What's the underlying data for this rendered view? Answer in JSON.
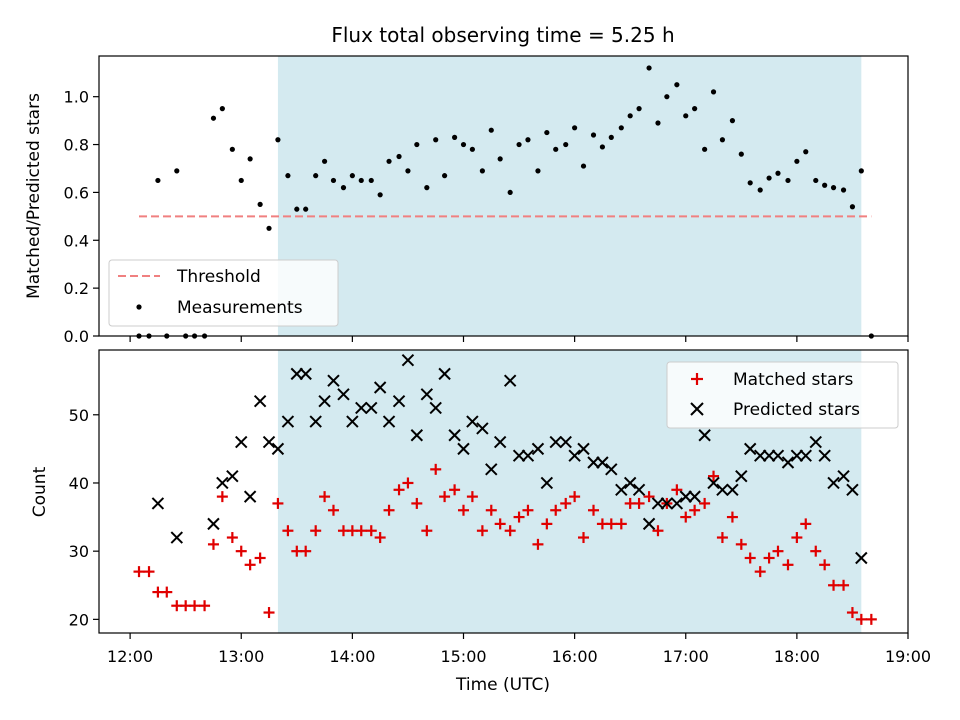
{
  "colors": {
    "observing_window": "#d4eaf0",
    "threshold": "#f08080",
    "measurements": "#000000",
    "matched": "#e00000",
    "predicted": "#000000"
  },
  "chart_data": [
    {
      "type": "scatter",
      "title": "Flux total observing time = 5.25 h",
      "xlabel": "",
      "ylabel": "Matched/Predicted stars",
      "x_unit": "hours UTC",
      "xlim": [
        11.72,
        19.0
      ],
      "ylim": [
        0.0,
        1.17
      ],
      "yticks": [
        0.0,
        0.2,
        0.4,
        0.6,
        0.8,
        1.0
      ],
      "ytick_labels": [
        "0.0",
        "0.2",
        "0.4",
        "0.6",
        "0.8",
        "1.0"
      ],
      "shaded_span": [
        13.33,
        18.58
      ],
      "legend_position": "lower-left",
      "threshold": {
        "name": "Threshold",
        "value": 0.5,
        "x_range": [
          12.08,
          18.67
        ]
      },
      "series": [
        {
          "name": "Measurements",
          "marker": "dot",
          "points": [
            [
              12.08,
              0.0
            ],
            [
              12.17,
              0.0
            ],
            [
              12.25,
              0.65
            ],
            [
              12.33,
              0.0
            ],
            [
              12.42,
              0.69
            ],
            [
              12.5,
              0.0
            ],
            [
              12.58,
              0.0
            ],
            [
              12.67,
              0.0
            ],
            [
              12.75,
              0.91
            ],
            [
              12.83,
              0.95
            ],
            [
              12.92,
              0.78
            ],
            [
              13.0,
              0.65
            ],
            [
              13.08,
              0.74
            ],
            [
              13.17,
              0.55
            ],
            [
              13.25,
              0.45
            ],
            [
              13.33,
              0.82
            ],
            [
              13.42,
              0.67
            ],
            [
              13.5,
              0.53
            ],
            [
              13.58,
              0.53
            ],
            [
              13.67,
              0.67
            ],
            [
              13.75,
              0.73
            ],
            [
              13.83,
              0.65
            ],
            [
              13.92,
              0.62
            ],
            [
              14.0,
              0.67
            ],
            [
              14.08,
              0.65
            ],
            [
              14.17,
              0.65
            ],
            [
              14.25,
              0.59
            ],
            [
              14.33,
              0.73
            ],
            [
              14.42,
              0.75
            ],
            [
              14.5,
              0.69
            ],
            [
              14.58,
              0.8
            ],
            [
              14.67,
              0.62
            ],
            [
              14.75,
              0.82
            ],
            [
              14.83,
              0.67
            ],
            [
              14.92,
              0.83
            ],
            [
              15.0,
              0.8
            ],
            [
              15.08,
              0.78
            ],
            [
              15.17,
              0.69
            ],
            [
              15.25,
              0.86
            ],
            [
              15.33,
              0.74
            ],
            [
              15.42,
              0.6
            ],
            [
              15.5,
              0.8
            ],
            [
              15.58,
              0.82
            ],
            [
              15.67,
              0.69
            ],
            [
              15.75,
              0.85
            ],
            [
              15.83,
              0.78
            ],
            [
              15.92,
              0.8
            ],
            [
              16.0,
              0.87
            ],
            [
              16.08,
              0.71
            ],
            [
              16.17,
              0.84
            ],
            [
              16.25,
              0.79
            ],
            [
              16.33,
              0.83
            ],
            [
              16.42,
              0.87
            ],
            [
              16.5,
              0.92
            ],
            [
              16.58,
              0.95
            ],
            [
              16.67,
              1.12
            ],
            [
              16.75,
              0.89
            ],
            [
              16.83,
              1.0
            ],
            [
              16.92,
              1.05
            ],
            [
              17.0,
              0.92
            ],
            [
              17.08,
              0.95
            ],
            [
              17.17,
              0.78
            ],
            [
              17.25,
              1.02
            ],
            [
              17.33,
              0.82
            ],
            [
              17.42,
              0.9
            ],
            [
              17.5,
              0.76
            ],
            [
              17.58,
              0.64
            ],
            [
              17.67,
              0.61
            ],
            [
              17.75,
              0.66
            ],
            [
              17.83,
              0.68
            ],
            [
              17.92,
              0.65
            ],
            [
              18.0,
              0.73
            ],
            [
              18.08,
              0.77
            ],
            [
              18.17,
              0.65
            ],
            [
              18.25,
              0.63
            ],
            [
              18.33,
              0.62
            ],
            [
              18.42,
              0.61
            ],
            [
              18.5,
              0.54
            ],
            [
              18.58,
              0.69
            ],
            [
              18.67,
              0.0
            ]
          ]
        }
      ]
    },
    {
      "type": "scatter",
      "title": "",
      "xlabel": "Time (UTC)",
      "ylabel": "Count",
      "x_unit": "hours UTC",
      "xlim": [
        11.72,
        19.0
      ],
      "ylim": [
        18.0,
        59.5
      ],
      "yticks": [
        20,
        30,
        40,
        50
      ],
      "ytick_labels": [
        "20",
        "30",
        "40",
        "50"
      ],
      "xticks": [
        12,
        13,
        14,
        15,
        16,
        17,
        18,
        19
      ],
      "xtick_labels": [
        "12:00",
        "13:00",
        "14:00",
        "15:00",
        "16:00",
        "17:00",
        "18:00",
        "19:00"
      ],
      "shaded_span": [
        13.33,
        18.58
      ],
      "legend_position": "upper-right",
      "series": [
        {
          "name": "Matched stars",
          "marker": "plus",
          "points": [
            [
              12.08,
              27
            ],
            [
              12.17,
              27
            ],
            [
              12.25,
              24
            ],
            [
              12.33,
              24
            ],
            [
              12.42,
              22
            ],
            [
              12.5,
              22
            ],
            [
              12.58,
              22
            ],
            [
              12.67,
              22
            ],
            [
              12.75,
              31
            ],
            [
              12.83,
              38
            ],
            [
              12.92,
              32
            ],
            [
              13.0,
              30
            ],
            [
              13.08,
              28
            ],
            [
              13.17,
              29
            ],
            [
              13.25,
              21
            ],
            [
              13.33,
              37
            ],
            [
              13.42,
              33
            ],
            [
              13.5,
              30
            ],
            [
              13.58,
              30
            ],
            [
              13.67,
              33
            ],
            [
              13.75,
              38
            ],
            [
              13.83,
              36
            ],
            [
              13.92,
              33
            ],
            [
              14.0,
              33
            ],
            [
              14.08,
              33
            ],
            [
              14.17,
              33
            ],
            [
              14.25,
              32
            ],
            [
              14.33,
              36
            ],
            [
              14.42,
              39
            ],
            [
              14.5,
              40
            ],
            [
              14.58,
              37
            ],
            [
              14.67,
              33
            ],
            [
              14.75,
              42
            ],
            [
              14.83,
              38
            ],
            [
              14.92,
              39
            ],
            [
              15.0,
              36
            ],
            [
              15.08,
              38
            ],
            [
              15.17,
              33
            ],
            [
              15.25,
              36
            ],
            [
              15.33,
              34
            ],
            [
              15.42,
              33
            ],
            [
              15.5,
              35
            ],
            [
              15.58,
              36
            ],
            [
              15.67,
              31
            ],
            [
              15.75,
              34
            ],
            [
              15.83,
              36
            ],
            [
              15.92,
              37
            ],
            [
              16.0,
              38
            ],
            [
              16.08,
              32
            ],
            [
              16.17,
              36
            ],
            [
              16.25,
              34
            ],
            [
              16.33,
              34
            ],
            [
              16.42,
              34
            ],
            [
              16.5,
              37
            ],
            [
              16.58,
              37
            ],
            [
              16.67,
              38
            ],
            [
              16.75,
              33
            ],
            [
              16.83,
              37
            ],
            [
              16.92,
              39
            ],
            [
              17.0,
              35
            ],
            [
              17.08,
              36
            ],
            [
              17.17,
              37
            ],
            [
              17.25,
              41
            ],
            [
              17.33,
              32
            ],
            [
              17.42,
              35
            ],
            [
              17.5,
              31
            ],
            [
              17.58,
              29
            ],
            [
              17.67,
              27
            ],
            [
              17.75,
              29
            ],
            [
              17.83,
              30
            ],
            [
              17.92,
              28
            ],
            [
              18.0,
              32
            ],
            [
              18.08,
              34
            ],
            [
              18.17,
              30
            ],
            [
              18.25,
              28
            ],
            [
              18.33,
              25
            ],
            [
              18.42,
              25
            ],
            [
              18.5,
              21
            ],
            [
              18.58,
              20
            ],
            [
              18.67,
              20
            ]
          ]
        },
        {
          "name": "Predicted stars",
          "marker": "x",
          "points": [
            [
              12.25,
              37
            ],
            [
              12.42,
              32
            ],
            [
              12.75,
              34
            ],
            [
              12.83,
              40
            ],
            [
              12.92,
              41
            ],
            [
              13.0,
              46
            ],
            [
              13.08,
              38
            ],
            [
              13.17,
              52
            ],
            [
              13.25,
              46
            ],
            [
              13.33,
              45
            ],
            [
              13.42,
              49
            ],
            [
              13.5,
              56
            ],
            [
              13.58,
              56
            ],
            [
              13.67,
              49
            ],
            [
              13.75,
              52
            ],
            [
              13.83,
              55
            ],
            [
              13.92,
              53
            ],
            [
              14.0,
              49
            ],
            [
              14.08,
              51
            ],
            [
              14.17,
              51
            ],
            [
              14.25,
              54
            ],
            [
              14.33,
              49
            ],
            [
              14.42,
              52
            ],
            [
              14.5,
              58
            ],
            [
              14.58,
              47
            ],
            [
              14.67,
              53
            ],
            [
              14.75,
              51
            ],
            [
              14.83,
              56
            ],
            [
              14.92,
              47
            ],
            [
              15.0,
              45
            ],
            [
              15.08,
              49
            ],
            [
              15.17,
              48
            ],
            [
              15.25,
              42
            ],
            [
              15.33,
              46
            ],
            [
              15.42,
              55
            ],
            [
              15.5,
              44
            ],
            [
              15.58,
              44
            ],
            [
              15.67,
              45
            ],
            [
              15.75,
              40
            ],
            [
              15.83,
              46
            ],
            [
              15.92,
              46
            ],
            [
              16.0,
              44
            ],
            [
              16.08,
              45
            ],
            [
              16.17,
              43
            ],
            [
              16.25,
              43
            ],
            [
              16.33,
              42
            ],
            [
              16.42,
              39
            ],
            [
              16.5,
              40
            ],
            [
              16.58,
              39
            ],
            [
              16.67,
              34
            ],
            [
              16.75,
              37
            ],
            [
              16.83,
              37
            ],
            [
              16.92,
              37
            ],
            [
              17.0,
              38
            ],
            [
              17.08,
              38
            ],
            [
              17.17,
              47
            ],
            [
              17.25,
              40
            ],
            [
              17.33,
              39
            ],
            [
              17.42,
              39
            ],
            [
              17.5,
              41
            ],
            [
              17.58,
              45
            ],
            [
              17.67,
              44
            ],
            [
              17.75,
              44
            ],
            [
              17.83,
              44
            ],
            [
              17.92,
              43
            ],
            [
              18.0,
              44
            ],
            [
              18.08,
              44
            ],
            [
              18.17,
              46
            ],
            [
              18.25,
              44
            ],
            [
              18.33,
              40
            ],
            [
              18.42,
              41
            ],
            [
              18.5,
              39
            ],
            [
              18.58,
              29
            ]
          ]
        }
      ]
    }
  ]
}
